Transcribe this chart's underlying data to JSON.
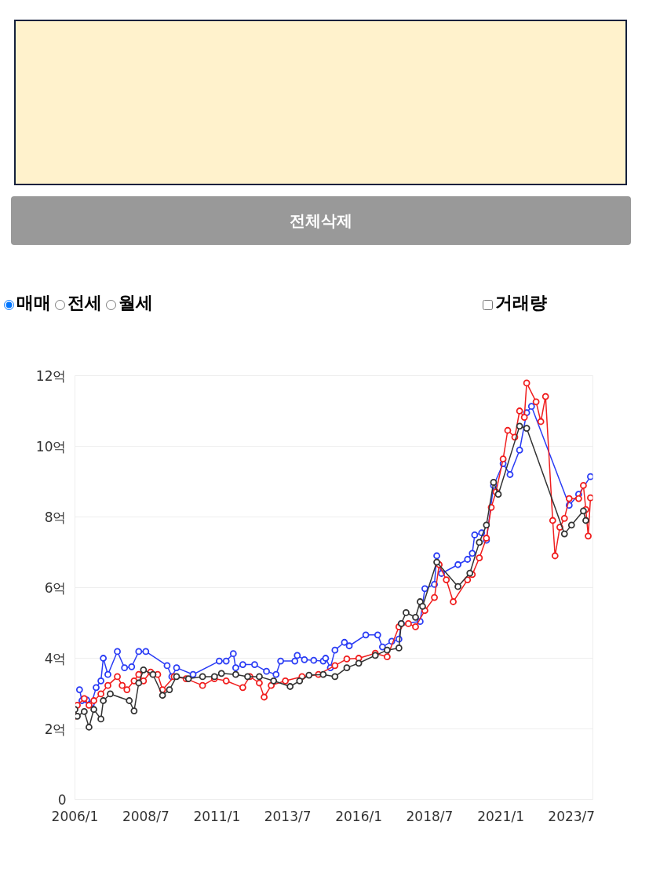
{
  "chart_data": {
    "type": "line",
    "annotations": [
      "전체삭제",
      "매매",
      "전세",
      "월세",
      "거래량"
    ],
    "xlim": [
      "2006-01",
      "2024-04"
    ],
    "ylim": [
      0,
      12
    ],
    "xticks": [
      {
        "value": "2006-01",
        "label": "2006/1"
      },
      {
        "value": "2008-07",
        "label": "2008/7"
      },
      {
        "value": "2011-01",
        "label": "2011/1"
      },
      {
        "value": "2013-07",
        "label": "2013/7"
      },
      {
        "value": "2016-01",
        "label": "2016/1"
      },
      {
        "value": "2018-07",
        "label": "2018/7"
      },
      {
        "value": "2021-01",
        "label": "2021/1"
      },
      {
        "value": "2023-07",
        "label": "2023/7"
      }
    ],
    "yticks": [
      0,
      {
        "value": 2,
        "label": "2억"
      },
      {
        "value": 4,
        "label": "4억"
      },
      {
        "value": 6,
        "label": "6억"
      },
      {
        "value": 8,
        "label": "8억"
      },
      {
        "value": 10,
        "label": "10억"
      },
      {
        "value": 12,
        "label": "12억"
      }
    ],
    "grid": "y",
    "marker": "circle",
    "line_style": "solid",
    "series": [
      {
        "color": "#2a3cf5",
        "x": [
          "2006-03",
          "2006-04",
          "2006-06",
          "2006-08",
          "2006-10",
          "2006-12",
          "2007-01",
          "2007-03",
          "2007-07",
          "2007-10",
          "2008-01",
          "2008-04",
          "2008-07",
          "2009-04",
          "2009-06",
          "2009-08",
          "2010-03",
          "2011-02",
          "2011-05",
          "2011-08",
          "2011-09",
          "2011-12",
          "2012-05",
          "2012-10",
          "2013-02",
          "2013-04",
          "2013-10",
          "2013-11",
          "2014-02",
          "2014-06",
          "2014-10",
          "2014-11",
          "2015-01",
          "2015-03",
          "2015-07",
          "2015-09",
          "2016-04",
          "2016-09",
          "2016-11",
          "2017-03",
          "2017-06",
          "2017-07",
          "2018-03",
          "2018-05",
          "2018-09",
          "2018-10",
          "2018-12",
          "2019-07",
          "2019-11",
          "2020-01",
          "2020-02",
          "2020-05",
          "2020-07",
          "2020-10",
          "2021-02",
          "2021-05",
          "2021-09",
          "2021-12",
          "2022-02",
          "2023-06",
          "2023-10",
          "2024-03"
        ],
        "values": [
          3.11,
          2.8,
          2.82,
          2.71,
          3.17,
          3.36,
          4.0,
          3.54,
          4.19,
          3.73,
          3.76,
          4.19,
          4.19,
          3.79,
          3.48,
          3.73,
          3.54,
          3.92,
          3.92,
          4.13,
          3.73,
          3.82,
          3.82,
          3.63,
          3.54,
          3.92,
          3.92,
          4.08,
          3.96,
          3.94,
          3.92,
          4.0,
          3.73,
          4.23,
          4.45,
          4.35,
          4.66,
          4.66,
          4.32,
          4.48,
          4.54,
          4.98,
          5.04,
          5.97,
          6.09,
          6.9,
          6.4,
          6.65,
          6.8,
          6.97,
          7.49,
          7.55,
          7.34,
          8.89,
          9.51,
          9.2,
          9.89,
          10.95,
          11.13,
          8.33,
          8.64,
          9.14
        ]
      },
      {
        "color": "#f01e1e",
        "x": [
          "2006-01",
          "2006-02",
          "2006-05",
          "2006-07",
          "2006-09",
          "2006-12",
          "2007-03",
          "2007-07",
          "2007-09",
          "2007-11",
          "2008-02",
          "2008-04",
          "2008-06",
          "2008-09",
          "2008-12",
          "2009-02",
          "2009-07",
          "2009-12",
          "2010-07",
          "2010-12",
          "2011-05",
          "2011-12",
          "2012-03",
          "2012-07",
          "2012-09",
          "2012-12",
          "2013-06",
          "2014-01",
          "2014-08",
          "2015-03",
          "2015-08",
          "2016-01",
          "2016-08",
          "2017-01",
          "2017-06",
          "2017-10",
          "2018-01",
          "2018-05",
          "2018-09",
          "2018-11",
          "2019-02",
          "2019-05",
          "2019-11",
          "2020-01",
          "2020-04",
          "2020-07",
          "2020-09",
          "2020-11",
          "2021-02",
          "2021-04",
          "2021-07",
          "2021-09",
          "2021-11",
          "2021-12",
          "2022-04",
          "2022-06",
          "2022-08",
          "2022-11",
          "2022-12",
          "2023-02",
          "2023-04",
          "2023-06",
          "2023-10",
          "2023-12",
          "2024-01",
          "2024-02",
          "2024-03"
        ],
        "values": [
          2.36,
          2.67,
          2.86,
          2.67,
          2.8,
          2.99,
          3.23,
          3.48,
          3.23,
          3.11,
          3.36,
          3.54,
          3.36,
          3.61,
          3.54,
          3.11,
          3.48,
          3.42,
          3.23,
          3.42,
          3.36,
          3.17,
          3.48,
          3.3,
          2.9,
          3.23,
          3.36,
          3.48,
          3.54,
          3.79,
          3.98,
          4.0,
          4.14,
          4.04,
          4.89,
          4.98,
          4.89,
          5.35,
          5.72,
          6.65,
          6.22,
          5.6,
          6.22,
          6.37,
          6.84,
          7.4,
          8.27,
          8.71,
          9.64,
          10.45,
          10.26,
          11.0,
          10.82,
          11.79,
          11.26,
          10.7,
          11.41,
          7.9,
          6.9,
          7.71,
          7.96,
          8.52,
          8.52,
          8.89,
          8.21,
          7.46,
          8.54
        ]
      },
      {
        "color": "#333333",
        "x": [
          "2006-01",
          "2006-02",
          "2006-05",
          "2006-07",
          "2006-09",
          "2006-12",
          "2007-01",
          "2007-04",
          "2007-12",
          "2008-02",
          "2008-04",
          "2008-06",
          "2008-10",
          "2009-02",
          "2009-05",
          "2009-08",
          "2010-01",
          "2010-07",
          "2010-12",
          "2011-03",
          "2011-09",
          "2012-02",
          "2012-07",
          "2013-01",
          "2013-08",
          "2013-12",
          "2014-04",
          "2014-10",
          "2015-03",
          "2015-08",
          "2016-01",
          "2016-08",
          "2017-01",
          "2017-06",
          "2017-07",
          "2017-09",
          "2018-01",
          "2018-03",
          "2018-04",
          "2018-10",
          "2019-07",
          "2019-12",
          "2020-04",
          "2020-07",
          "2020-10",
          "2020-12",
          "2021-09",
          "2021-12",
          "2023-04",
          "2023-07",
          "2023-12",
          "2024-01"
        ],
        "values": [
          2.55,
          2.36,
          2.49,
          2.05,
          2.55,
          2.28,
          2.8,
          2.99,
          2.8,
          2.51,
          3.3,
          3.67,
          3.54,
          2.95,
          3.11,
          3.48,
          3.42,
          3.48,
          3.48,
          3.57,
          3.54,
          3.48,
          3.48,
          3.36,
          3.2,
          3.36,
          3.52,
          3.54,
          3.48,
          3.73,
          3.86,
          4.08,
          4.23,
          4.29,
          4.98,
          5.29,
          5.16,
          5.6,
          5.47,
          6.72,
          6.03,
          6.41,
          7.28,
          7.77,
          8.98,
          8.64,
          10.57,
          10.51,
          7.52,
          7.77,
          8.17,
          7.9
        ]
      }
    ]
  }
}
